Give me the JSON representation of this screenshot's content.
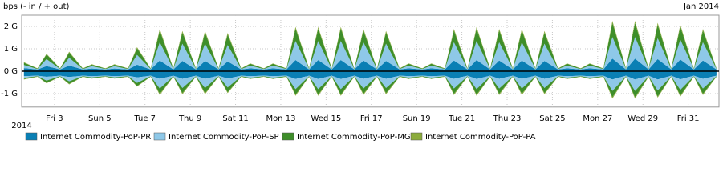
{
  "chart_data": {
    "type": "mirrored-stacked-area",
    "ylabel": "bps (- in / + out)",
    "period_label": "Jan 2014",
    "start_label": "2014",
    "x": [
      1.65,
      2.25,
      2.65,
      3.25,
      3.65,
      4.25,
      4.65,
      5.25,
      5.65,
      6.25,
      6.65,
      7.25,
      7.65,
      8.25,
      8.65,
      9.25,
      9.65,
      10.25,
      10.65,
      11.25,
      11.65,
      12.25,
      12.65,
      13.25,
      13.65,
      14.25,
      14.65,
      15.25,
      15.65,
      16.25,
      16.65,
      17.25,
      17.65,
      18.25,
      18.65,
      19.25,
      19.65,
      20.25,
      20.65,
      21.25,
      21.65,
      22.25,
      22.65,
      23.25,
      23.65,
      24.25,
      24.65,
      25.25,
      25.65,
      26.25,
      26.65,
      27.25,
      27.65,
      28.25,
      28.65,
      29.25,
      29.65,
      30.25,
      30.65,
      31.25,
      31.65,
      32.25
    ],
    "series": [
      {
        "name": "Internet Commodity-PoP-PR",
        "color": "#0a7fb4",
        "values": [
          0.14,
          0.08,
          0.23,
          0.08,
          0.25,
          0.08,
          0.12,
          0.08,
          0.12,
          0.08,
          0.29,
          0.08,
          0.48,
          0.08,
          0.46,
          0.08,
          0.46,
          0.08,
          0.44,
          0.08,
          0.13,
          0.08,
          0.13,
          0.08,
          0.5,
          0.08,
          0.5,
          0.08,
          0.5,
          0.08,
          0.48,
          0.08,
          0.46,
          0.08,
          0.13,
          0.08,
          0.13,
          0.08,
          0.48,
          0.08,
          0.5,
          0.08,
          0.48,
          0.08,
          0.48,
          0.08,
          0.46,
          0.08,
          0.13,
          0.08,
          0.13,
          0.08,
          0.56,
          0.08,
          0.56,
          0.08,
          0.54,
          0.08,
          0.52,
          0.08,
          0.48,
          0.08
        ],
        "in_values": [
          -0.22,
          -0.2,
          -0.25,
          -0.2,
          -0.26,
          -0.2,
          -0.22,
          -0.2,
          -0.22,
          -0.2,
          -0.28,
          -0.2,
          -0.34,
          -0.2,
          -0.34,
          -0.2,
          -0.34,
          -0.2,
          -0.33,
          -0.2,
          -0.22,
          -0.2,
          -0.22,
          -0.2,
          -0.35,
          -0.2,
          -0.35,
          -0.2,
          -0.35,
          -0.2,
          -0.34,
          -0.2,
          -0.34,
          -0.2,
          -0.22,
          -0.2,
          -0.22,
          -0.2,
          -0.34,
          -0.2,
          -0.35,
          -0.2,
          -0.34,
          -0.2,
          -0.34,
          -0.2,
          -0.34,
          -0.2,
          -0.22,
          -0.2,
          -0.22,
          -0.2,
          -0.37,
          -0.2,
          -0.37,
          -0.2,
          -0.37,
          -0.2,
          -0.36,
          -0.2,
          -0.34,
          -0.2
        ]
      },
      {
        "name": "Internet Commodity-PoP-SP",
        "color": "#8ec8e8",
        "values": [
          0.14,
          0.02,
          0.31,
          0.02,
          0.35,
          0.02,
          0.1,
          0.02,
          0.1,
          0.02,
          0.44,
          0.02,
          0.81,
          0.02,
          0.77,
          0.02,
          0.77,
          0.02,
          0.73,
          0.02,
          0.12,
          0.02,
          0.12,
          0.02,
          0.85,
          0.02,
          0.85,
          0.02,
          0.85,
          0.02,
          0.81,
          0.02,
          0.77,
          0.02,
          0.12,
          0.02,
          0.12,
          0.02,
          0.81,
          0.02,
          0.85,
          0.02,
          0.81,
          0.02,
          0.81,
          0.02,
          0.77,
          0.02,
          0.12,
          0.02,
          0.12,
          0.02,
          0.97,
          0.02,
          0.97,
          0.02,
          0.93,
          0.02,
          0.89,
          0.02,
          0.81,
          0.02
        ],
        "in_values": [
          -0.08,
          -0.02,
          -0.17,
          -0.02,
          -0.19,
          -0.02,
          -0.06,
          -0.02,
          -0.06,
          -0.02,
          -0.24,
          -0.02,
          -0.43,
          -0.02,
          -0.41,
          -0.02,
          -0.41,
          -0.02,
          -0.39,
          -0.02,
          -0.07,
          -0.02,
          -0.07,
          -0.02,
          -0.45,
          -0.02,
          -0.45,
          -0.02,
          -0.45,
          -0.02,
          -0.43,
          -0.02,
          -0.41,
          -0.02,
          -0.07,
          -0.02,
          -0.07,
          -0.02,
          -0.43,
          -0.02,
          -0.45,
          -0.02,
          -0.43,
          -0.02,
          -0.43,
          -0.02,
          -0.41,
          -0.02,
          -0.07,
          -0.02,
          -0.07,
          -0.02,
          -0.51,
          -0.02,
          -0.51,
          -0.02,
          -0.49,
          -0.02,
          -0.47,
          -0.02,
          -0.43,
          -0.02
        ]
      },
      {
        "name": "Internet Commodity-PoP-MG",
        "color": "#3e8e2a",
        "values": [
          0.1,
          0.02,
          0.21,
          0.02,
          0.23,
          0.02,
          0.07,
          0.02,
          0.07,
          0.02,
          0.29,
          0.02,
          0.52,
          0.02,
          0.5,
          0.02,
          0.5,
          0.02,
          0.47,
          0.02,
          0.08,
          0.02,
          0.08,
          0.02,
          0.55,
          0.02,
          0.55,
          0.02,
          0.55,
          0.02,
          0.52,
          0.02,
          0.5,
          0.02,
          0.08,
          0.02,
          0.08,
          0.02,
          0.52,
          0.02,
          0.55,
          0.02,
          0.52,
          0.02,
          0.52,
          0.02,
          0.5,
          0.02,
          0.08,
          0.02,
          0.08,
          0.02,
          0.63,
          0.02,
          0.63,
          0.02,
          0.6,
          0.02,
          0.58,
          0.02,
          0.52,
          0.02
        ],
        "in_values": [
          -0.05,
          -0.02,
          -0.1,
          -0.02,
          -0.11,
          -0.02,
          -0.04,
          -0.02,
          -0.04,
          -0.02,
          -0.14,
          -0.02,
          -0.24,
          -0.02,
          -0.23,
          -0.02,
          -0.23,
          -0.02,
          -0.22,
          -0.02,
          -0.05,
          -0.02,
          -0.05,
          -0.02,
          -0.25,
          -0.02,
          -0.25,
          -0.02,
          -0.25,
          -0.02,
          -0.24,
          -0.02,
          -0.23,
          -0.02,
          -0.05,
          -0.02,
          -0.05,
          -0.02,
          -0.24,
          -0.02,
          -0.25,
          -0.02,
          -0.24,
          -0.02,
          -0.24,
          -0.02,
          -0.23,
          -0.02,
          -0.05,
          -0.02,
          -0.05,
          -0.02,
          -0.28,
          -0.02,
          -0.28,
          -0.02,
          -0.27,
          -0.02,
          -0.26,
          -0.02,
          -0.24,
          -0.02
        ]
      },
      {
        "name": "Internet Commodity-PoP-PA",
        "color": "#8bab3c",
        "values": [
          0.02,
          0.01,
          0.03,
          0.01,
          0.04,
          0.01,
          0.02,
          0.01,
          0.02,
          0.01,
          0.05,
          0.01,
          0.08,
          0.01,
          0.07,
          0.01,
          0.07,
          0.01,
          0.07,
          0.01,
          0.02,
          0.01,
          0.02,
          0.01,
          0.08,
          0.01,
          0.08,
          0.01,
          0.08,
          0.01,
          0.08,
          0.01,
          0.07,
          0.01,
          0.02,
          0.01,
          0.02,
          0.01,
          0.08,
          0.01,
          0.08,
          0.01,
          0.08,
          0.01,
          0.08,
          0.01,
          0.07,
          0.01,
          0.02,
          0.01,
          0.02,
          0.01,
          0.09,
          0.01,
          0.09,
          0.01,
          0.09,
          0.01,
          0.08,
          0.01,
          0.08,
          0.01
        ],
        "in_values": [
          -0.02,
          -0.01,
          -0.02,
          -0.01,
          -0.03,
          -0.01,
          -0.01,
          -0.01,
          -0.01,
          -0.01,
          -0.03,
          -0.01,
          -0.05,
          -0.01,
          -0.05,
          -0.01,
          -0.05,
          -0.01,
          -0.04,
          -0.01,
          -0.01,
          -0.01,
          -0.01,
          -0.01,
          -0.05,
          -0.01,
          -0.05,
          -0.01,
          -0.05,
          -0.01,
          -0.05,
          -0.01,
          -0.05,
          -0.01,
          -0.01,
          -0.01,
          -0.01,
          -0.01,
          -0.05,
          -0.01,
          -0.05,
          -0.01,
          -0.05,
          -0.01,
          -0.05,
          -0.01,
          -0.05,
          -0.01,
          -0.01,
          -0.01,
          -0.01,
          -0.01,
          -0.06,
          -0.01,
          -0.06,
          -0.01,
          -0.05,
          -0.01,
          -0.05,
          -0.01,
          -0.05,
          -0.01
        ]
      }
    ],
    "xlim": [
      1.55,
      32.36
    ],
    "xticks": [
      {
        "value": 3,
        "label": "Fri 3"
      },
      {
        "value": 5,
        "label": "Sun 5"
      },
      {
        "value": 7,
        "label": "Tue 7"
      },
      {
        "value": 9,
        "label": "Thu 9"
      },
      {
        "value": 11,
        "label": "Sat 11"
      },
      {
        "value": 13,
        "label": "Mon 13"
      },
      {
        "value": 15,
        "label": "Wed 15"
      },
      {
        "value": 17,
        "label": "Fri 17"
      },
      {
        "value": 19,
        "label": "Sun 19"
      },
      {
        "value": 21,
        "label": "Tue 21"
      },
      {
        "value": 23,
        "label": "Thu 23"
      },
      {
        "value": 25,
        "label": "Sat 25"
      },
      {
        "value": 27,
        "label": "Mon 27"
      },
      {
        "value": 29,
        "label": "Wed 29"
      },
      {
        "value": 31,
        "label": "Fri 31"
      }
    ],
    "ylim": [
      -1.6,
      2.5
    ],
    "yticks": [
      {
        "value": 2,
        "label": "2 G"
      },
      {
        "value": 1,
        "label": "1 G"
      },
      {
        "value": 0,
        "label": "0 G"
      },
      {
        "value": -1,
        "label": "-1 G"
      }
    ],
    "grid": true
  }
}
